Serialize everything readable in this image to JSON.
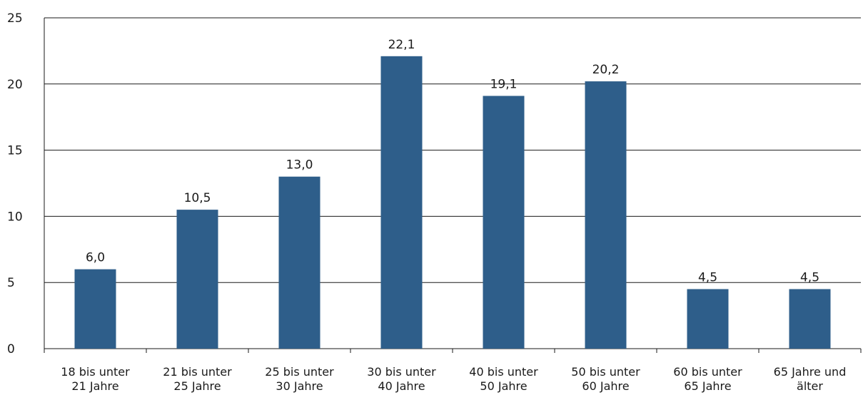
{
  "chart_data": {
    "type": "bar",
    "title": "",
    "xlabel": "",
    "ylabel": "",
    "ylim": [
      0,
      25
    ],
    "yticks": [
      0,
      5,
      10,
      15,
      20,
      25
    ],
    "grid": true,
    "categories": [
      [
        "18 bis unter",
        "21 Jahre"
      ],
      [
        "21 bis unter",
        "25 Jahre"
      ],
      [
        "25 bis unter",
        "30 Jahre"
      ],
      [
        "30 bis unter",
        "40 Jahre"
      ],
      [
        "40 bis unter",
        "50 Jahre"
      ],
      [
        "50 bis unter",
        "60 Jahre"
      ],
      [
        "60 bis unter",
        "65 Jahre"
      ],
      [
        "65 Jahre und",
        "älter"
      ]
    ],
    "values": [
      6.0,
      10.5,
      13.0,
      22.1,
      19.1,
      20.2,
      4.5,
      4.5
    ],
    "value_labels": [
      "6,0",
      "10,5",
      "13,0",
      "22,1",
      "19,1",
      "20,2",
      "4,5",
      "4,5"
    ],
    "colors": {
      "bar": "#2e5e8a",
      "grid": "#1a1a1a",
      "text": "#1a1a1a"
    }
  }
}
